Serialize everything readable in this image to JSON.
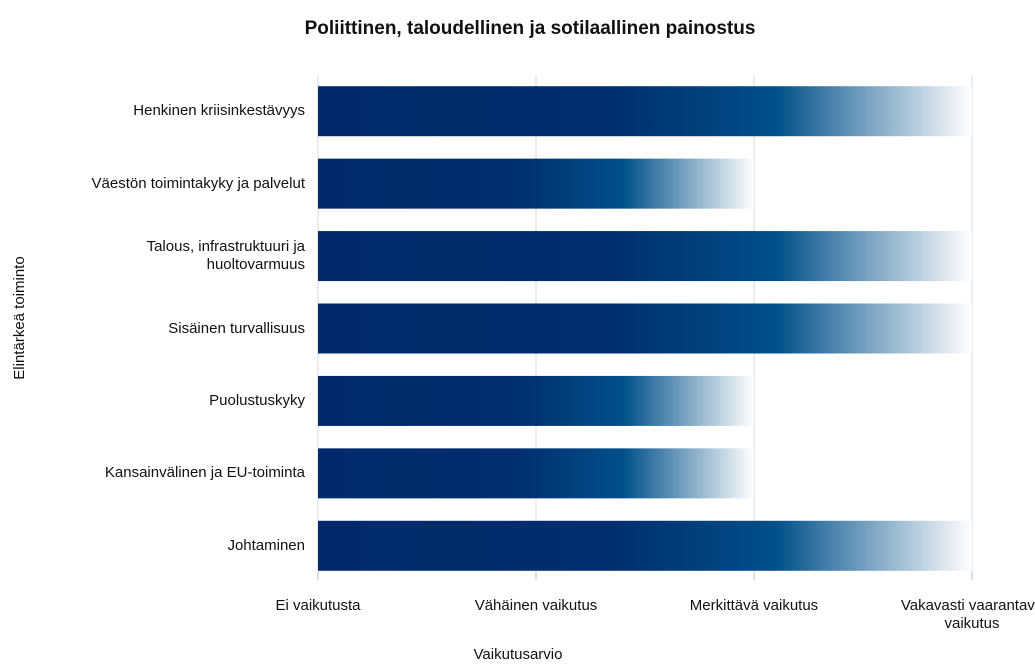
{
  "chart_data": {
    "type": "barh",
    "title": "Poliittinen, taloudellinen ja sotilaallinen painostus",
    "x_label": "Vaikutusarvio",
    "y_label": "Elintärkeä toiminto",
    "categories": [
      "Henkinen kriisinkestävyys",
      "Väestön toimintakyky ja palvelut",
      "Talous, infrastruktuuri ja huoltovarmuus",
      "Sisäinen turvallisuus",
      "Puolustuskyky",
      "Kansainvälinen ja EU-toiminta",
      "Johtaminen"
    ],
    "values": [
      3,
      2,
      3,
      3,
      2,
      2,
      3
    ],
    "color": "#002a6b",
    "xlim": [
      0,
      3
    ],
    "xticks": [
      {
        "value": 0,
        "label": "Ei vaikutusta"
      },
      {
        "value": 1,
        "label": "Vähäinen vaikutus"
      },
      {
        "value": 2,
        "label": "Merkittävä vaikutus"
      },
      {
        "value": 3,
        "label": "Vakavasti vaarantava vaikutus"
      }
    ],
    "grid": true
  }
}
